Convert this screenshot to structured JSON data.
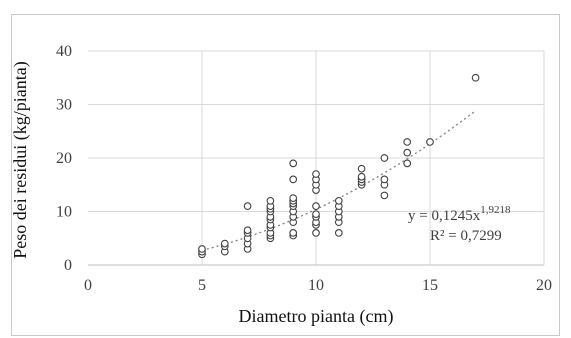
{
  "chart_data": {
    "type": "scatter",
    "title": "",
    "xlabel": "Diametro pianta (cm)",
    "ylabel": "Peso dei residui  (kg/pianta)",
    "xlim": [
      0,
      20
    ],
    "ylim": [
      0,
      40
    ],
    "xticks": [
      0,
      5,
      10,
      15,
      20
    ],
    "yticks": [
      0,
      10,
      20,
      30,
      40
    ],
    "grid": true,
    "legend": "none",
    "marker": "hollow-circle",
    "colors": {
      "marker": "#404040",
      "trendline": "#7f7f7f",
      "grid": "#d9d9d9",
      "axis": "#bfbfbf"
    },
    "points": [
      {
        "x": 5,
        "y": 2
      },
      {
        "x": 5,
        "y": 2.5
      },
      {
        "x": 5,
        "y": 3
      },
      {
        "x": 6,
        "y": 2.5
      },
      {
        "x": 6,
        "y": 3.5
      },
      {
        "x": 6,
        "y": 4
      },
      {
        "x": 7,
        "y": 3
      },
      {
        "x": 7,
        "y": 4
      },
      {
        "x": 7,
        "y": 5
      },
      {
        "x": 7,
        "y": 6
      },
      {
        "x": 7,
        "y": 6.5
      },
      {
        "x": 7,
        "y": 11
      },
      {
        "x": 8,
        "y": 5
      },
      {
        "x": 8,
        "y": 5.5
      },
      {
        "x": 8,
        "y": 6
      },
      {
        "x": 8,
        "y": 7
      },
      {
        "x": 8,
        "y": 7.5
      },
      {
        "x": 8,
        "y": 8.5
      },
      {
        "x": 8,
        "y": 9
      },
      {
        "x": 8,
        "y": 10
      },
      {
        "x": 8,
        "y": 10.5
      },
      {
        "x": 8,
        "y": 11
      },
      {
        "x": 8,
        "y": 12
      },
      {
        "x": 9,
        "y": 5.5
      },
      {
        "x": 9,
        "y": 6
      },
      {
        "x": 9,
        "y": 8
      },
      {
        "x": 9,
        "y": 9
      },
      {
        "x": 9,
        "y": 10
      },
      {
        "x": 9,
        "y": 11
      },
      {
        "x": 9,
        "y": 11.5
      },
      {
        "x": 9,
        "y": 12
      },
      {
        "x": 9,
        "y": 12.5
      },
      {
        "x": 9,
        "y": 16
      },
      {
        "x": 9,
        "y": 19
      },
      {
        "x": 10,
        "y": 6
      },
      {
        "x": 10,
        "y": 7.5
      },
      {
        "x": 10,
        "y": 8
      },
      {
        "x": 10,
        "y": 9
      },
      {
        "x": 10,
        "y": 9.5
      },
      {
        "x": 10,
        "y": 11
      },
      {
        "x": 10,
        "y": 14
      },
      {
        "x": 10,
        "y": 15
      },
      {
        "x": 10,
        "y": 16
      },
      {
        "x": 10,
        "y": 17
      },
      {
        "x": 11,
        "y": 6
      },
      {
        "x": 11,
        "y": 8
      },
      {
        "x": 11,
        "y": 9
      },
      {
        "x": 11,
        "y": 10
      },
      {
        "x": 11,
        "y": 11
      },
      {
        "x": 11,
        "y": 12
      },
      {
        "x": 12,
        "y": 15
      },
      {
        "x": 12,
        "y": 15.5
      },
      {
        "x": 12,
        "y": 16
      },
      {
        "x": 12,
        "y": 16.5
      },
      {
        "x": 12,
        "y": 18
      },
      {
        "x": 13,
        "y": 13
      },
      {
        "x": 13,
        "y": 15
      },
      {
        "x": 13,
        "y": 16
      },
      {
        "x": 13,
        "y": 20
      },
      {
        "x": 14,
        "y": 19
      },
      {
        "x": 14,
        "y": 21
      },
      {
        "x": 14,
        "y": 23
      },
      {
        "x": 15,
        "y": 23
      },
      {
        "x": 17,
        "y": 35
      }
    ],
    "trendline": {
      "type": "power",
      "a": 0.1245,
      "b": 1.9218,
      "x_range": [
        5,
        17
      ],
      "equation_prefix": "y = 0,1245x",
      "equation_exponent": "1,9218",
      "r2_label": "R² = 0,7299"
    }
  }
}
